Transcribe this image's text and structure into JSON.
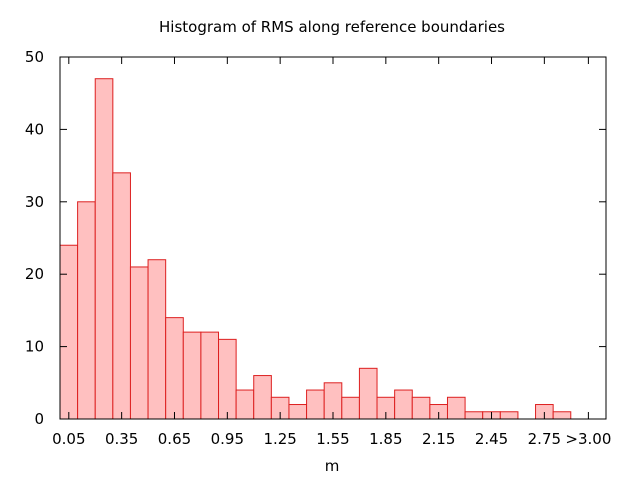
{
  "chart_data": {
    "type": "bar",
    "title": "Histogram of RMS along reference boundaries",
    "xlabel": "m",
    "ylabel": "",
    "ylim": [
      0,
      50
    ],
    "y_ticks": [
      0,
      10,
      20,
      30,
      40,
      50
    ],
    "x_ticks": [
      "0.05",
      "0.35",
      "0.65",
      "0.95",
      "1.25",
      "1.55",
      "1.85",
      "2.15",
      "2.45",
      "2.75",
      ">3.00"
    ],
    "x_tick_values": [
      0.05,
      0.35,
      0.65,
      0.95,
      1.25,
      1.55,
      1.85,
      2.15,
      2.45,
      2.75,
      3.0
    ],
    "xlim": [
      0.0,
      3.1
    ],
    "bin_width": 0.1,
    "bin_starts": [
      0.0,
      0.1,
      0.2,
      0.3,
      0.4,
      0.5,
      0.6,
      0.7,
      0.8,
      0.9,
      1.0,
      1.1,
      1.2,
      1.3,
      1.4,
      1.5,
      1.6,
      1.7,
      1.8,
      1.9,
      2.0,
      2.1,
      2.2,
      2.3,
      2.4,
      2.5,
      2.6,
      2.7,
      2.8,
      2.9
    ],
    "values": [
      24,
      30,
      47,
      34,
      21,
      22,
      14,
      12,
      12,
      11,
      4,
      6,
      3,
      2,
      4,
      5,
      3,
      7,
      3,
      4,
      3,
      2,
      3,
      1,
      1,
      1,
      0,
      2,
      1,
      0
    ],
    "grid": false,
    "bar_fill": "#ffc0c0",
    "bar_stroke": "#dd2020"
  }
}
